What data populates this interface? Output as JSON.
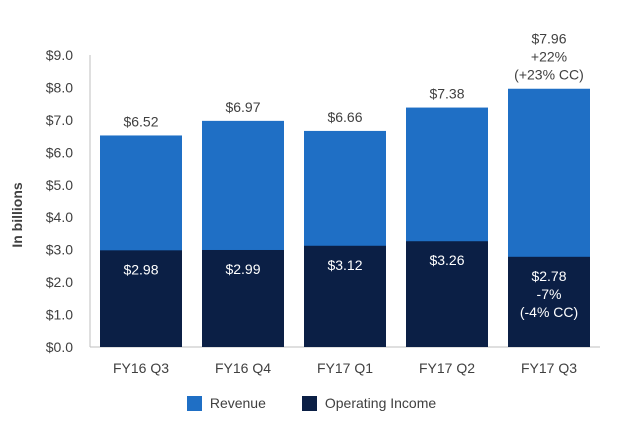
{
  "chart_data": {
    "type": "bar",
    "stacked": "overlay",
    "categories": [
      "FY16 Q3",
      "FY16 Q4",
      "FY17 Q1",
      "FY17 Q2",
      "FY17 Q3"
    ],
    "series": [
      {
        "name": "Revenue",
        "values": [
          6.52,
          6.97,
          6.66,
          7.38,
          7.96
        ],
        "color": "#1f6fc5"
      },
      {
        "name": "Operating Income",
        "values": [
          2.98,
          2.99,
          3.12,
          3.26,
          2.78
        ],
        "color": "#0b1f45"
      }
    ],
    "revenue_labels": [
      [
        "$6.52"
      ],
      [
        "$6.97"
      ],
      [
        "$6.66"
      ],
      [
        "$7.38"
      ],
      [
        "$7.96",
        "+22%",
        "(+23% CC)"
      ]
    ],
    "income_labels": [
      [
        "$2.98"
      ],
      [
        "$2.99"
      ],
      [
        "$3.12"
      ],
      [
        "$3.26"
      ],
      [
        "$2.78",
        "-7%",
        "(-4% CC)"
      ]
    ],
    "ylabel": "In billions",
    "ylim": [
      0,
      9
    ],
    "yticks": [
      "$0.0",
      "$1.0",
      "$2.0",
      "$3.0",
      "$4.0",
      "$5.0",
      "$6.0",
      "$7.0",
      "$8.0",
      "$9.0"
    ],
    "grid": false,
    "legend": "bottom-center"
  }
}
